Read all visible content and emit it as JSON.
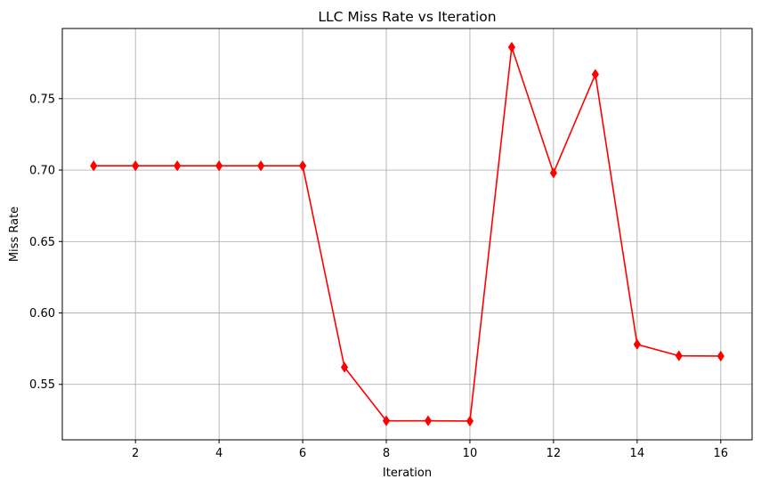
{
  "chart_data": {
    "type": "line",
    "title": "LLC Miss Rate vs Iteration",
    "xlabel": "Iteration",
    "ylabel": "Miss Rate",
    "x": [
      1,
      2,
      3,
      4,
      5,
      6,
      7,
      8,
      9,
      10,
      11,
      12,
      13,
      14,
      15,
      16
    ],
    "series": [
      {
        "values": [
          0.703,
          0.703,
          0.703,
          0.703,
          0.703,
          0.703,
          0.562,
          0.5245,
          0.5245,
          0.5243,
          0.786,
          0.698,
          0.767,
          0.578,
          0.57,
          0.5698
        ],
        "color": "#ff0000",
        "marker": "thin-diamond"
      }
    ],
    "xlim": [
      0.25,
      16.75
    ],
    "ylim": [
      0.5112,
      0.7991
    ],
    "xticks": [
      2,
      4,
      6,
      8,
      10,
      12,
      14,
      16
    ],
    "yticks": [
      0.55,
      0.6,
      0.65,
      0.7,
      0.75
    ],
    "ytick_labels": [
      "0.55",
      "0.60",
      "0.65",
      "0.70",
      "0.75"
    ],
    "grid": true,
    "grid_color": "#b0b0b0"
  }
}
